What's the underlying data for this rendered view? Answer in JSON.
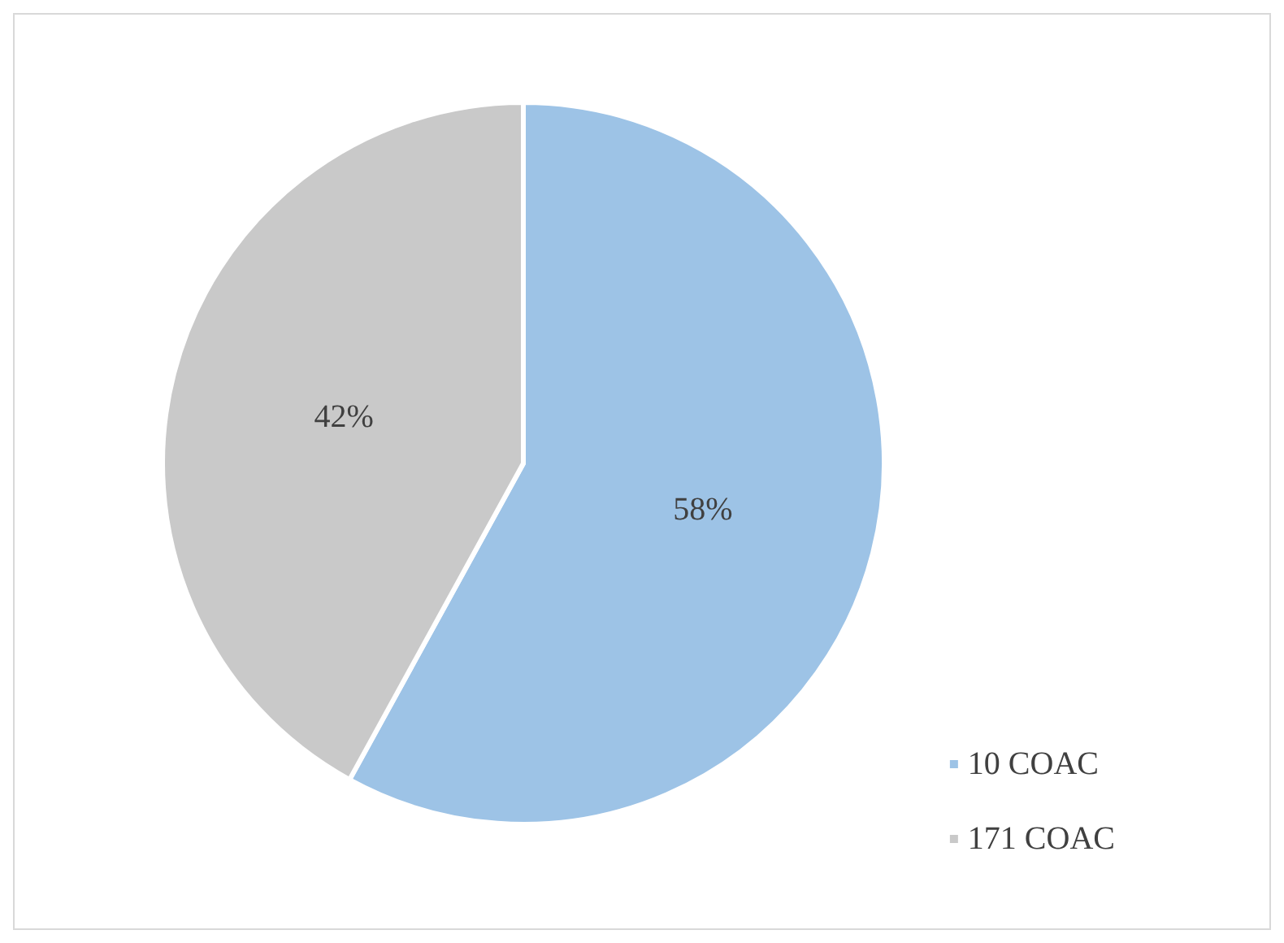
{
  "chart_data": {
    "type": "pie",
    "categories": [
      "10 COAC",
      "171 COAC"
    ],
    "values": [
      58,
      42
    ],
    "colors": [
      "#9dc3e6",
      "#c9c9c9"
    ],
    "value_labels": [
      "58%",
      "42%"
    ],
    "legend": "bottom right"
  }
}
